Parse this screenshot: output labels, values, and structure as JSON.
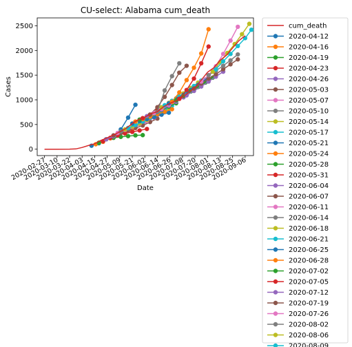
{
  "chart_data": {
    "type": "line",
    "title": "CU-select: Alabama cum_death",
    "xlabel": "Date",
    "ylabel": "Cases",
    "x_ticks": [
      "2020-02-27",
      "2020-03-10",
      "2020-03-22",
      "2020-04-03",
      "2020-04-15",
      "2020-04-27",
      "2020-05-09",
      "2020-05-21",
      "2020-06-02",
      "2020-06-14",
      "2020-06-26",
      "2020-07-08",
      "2020-07-20",
      "2020-08-01",
      "2020-08-13",
      "2020-08-25",
      "2020-09-06"
    ],
    "xlim": [
      "2020-02-20",
      "2020-09-14"
    ],
    "ylim": [
      -130,
      2660
    ],
    "y_ticks": [
      0,
      500,
      1000,
      1500,
      2000,
      2500
    ],
    "legend_position": "outside-right",
    "actual": {
      "name": "cum_death",
      "color": "#d62728",
      "points": [
        [
          "2020-02-27",
          0
        ],
        [
          "2020-03-10",
          0
        ],
        [
          "2020-03-22",
          1
        ],
        [
          "2020-03-28",
          5
        ],
        [
          "2020-04-03",
          35
        ],
        [
          "2020-04-10",
          80
        ],
        [
          "2020-04-15",
          110
        ],
        [
          "2020-04-20",
          170
        ],
        [
          "2020-04-27",
          230
        ],
        [
          "2020-05-03",
          290
        ],
        [
          "2020-05-09",
          350
        ],
        [
          "2020-05-15",
          420
        ],
        [
          "2020-05-21",
          520
        ],
        [
          "2020-05-27",
          600
        ],
        [
          "2020-06-02",
          650
        ],
        [
          "2020-06-08",
          720
        ],
        [
          "2020-06-14",
          760
        ],
        [
          "2020-06-20",
          860
        ],
        [
          "2020-06-26",
          930
        ],
        [
          "2020-07-02",
          980
        ],
        [
          "2020-07-08",
          1050
        ],
        [
          "2020-07-14",
          1150
        ],
        [
          "2020-07-20",
          1250
        ],
        [
          "2020-07-26",
          1400
        ],
        [
          "2020-08-01",
          1560
        ],
        [
          "2020-08-07",
          1650
        ],
        [
          "2020-08-13",
          1800
        ],
        [
          "2020-08-19",
          1900
        ],
        [
          "2020-08-25",
          2050
        ],
        [
          "2020-08-31",
          2200
        ],
        [
          "2020-09-06",
          2300
        ]
      ]
    },
    "series": [
      {
        "name": "2020-04-12",
        "color": "#1f77b4",
        "points": [
          [
            "2020-04-12",
            70
          ],
          [
            "2020-04-19",
            120
          ],
          [
            "2020-04-26",
            200
          ],
          [
            "2020-05-03",
            270
          ],
          [
            "2020-05-10",
            400
          ],
          [
            "2020-05-17",
            640
          ],
          [
            "2020-05-24",
            900
          ]
        ]
      },
      {
        "name": "2020-04-16",
        "color": "#ff7f0e",
        "points": [
          [
            "2020-04-16",
            100
          ],
          [
            "2020-04-23",
            150
          ],
          [
            "2020-04-30",
            220
          ],
          [
            "2020-05-07",
            300
          ],
          [
            "2020-05-14",
            360
          ],
          [
            "2020-05-21",
            390
          ]
        ]
      },
      {
        "name": "2020-04-19",
        "color": "#2ca02c",
        "points": [
          [
            "2020-04-19",
            130
          ],
          [
            "2020-04-26",
            200
          ],
          [
            "2020-05-03",
            230
          ],
          [
            "2020-05-10",
            250
          ],
          [
            "2020-05-17",
            265
          ],
          [
            "2020-05-24",
            280
          ],
          [
            "2020-05-31",
            285
          ]
        ]
      },
      {
        "name": "2020-04-23",
        "color": "#d62728",
        "points": [
          [
            "2020-04-23",
            160
          ],
          [
            "2020-04-30",
            230
          ],
          [
            "2020-05-07",
            280
          ],
          [
            "2020-05-14",
            320
          ],
          [
            "2020-05-21",
            350
          ],
          [
            "2020-05-28",
            380
          ],
          [
            "2020-06-04",
            410
          ]
        ]
      },
      {
        "name": "2020-04-26",
        "color": "#9467bd",
        "points": [
          [
            "2020-04-26",
            200
          ],
          [
            "2020-05-03",
            260
          ],
          [
            "2020-05-10",
            330
          ],
          [
            "2020-05-17",
            400
          ],
          [
            "2020-05-24",
            460
          ],
          [
            "2020-05-31",
            520
          ],
          [
            "2020-06-07",
            560
          ]
        ]
      },
      {
        "name": "2020-05-03",
        "color": "#8c564b",
        "points": [
          [
            "2020-05-03",
            280
          ],
          [
            "2020-05-10",
            330
          ],
          [
            "2020-05-17",
            380
          ],
          [
            "2020-05-24",
            430
          ],
          [
            "2020-05-31",
            480
          ],
          [
            "2020-06-07",
            550
          ],
          [
            "2020-06-14",
            620
          ]
        ]
      },
      {
        "name": "2020-05-07",
        "color": "#e377c2",
        "points": [
          [
            "2020-05-07",
            330
          ],
          [
            "2020-05-14",
            390
          ],
          [
            "2020-05-21",
            450
          ],
          [
            "2020-05-28",
            510
          ],
          [
            "2020-06-04",
            570
          ],
          [
            "2020-06-11",
            640
          ],
          [
            "2020-06-18",
            700
          ]
        ]
      },
      {
        "name": "2020-05-10",
        "color": "#7f7f7f",
        "points": [
          [
            "2020-05-10",
            360
          ],
          [
            "2020-05-17",
            420
          ],
          [
            "2020-05-24",
            490
          ],
          [
            "2020-05-31",
            560
          ],
          [
            "2020-06-07",
            630
          ],
          [
            "2020-06-14",
            700
          ],
          [
            "2020-06-21",
            770
          ]
        ]
      },
      {
        "name": "2020-05-14",
        "color": "#bcbd22",
        "points": [
          [
            "2020-05-14",
            400
          ],
          [
            "2020-05-21",
            460
          ],
          [
            "2020-05-28",
            520
          ],
          [
            "2020-06-04",
            590
          ],
          [
            "2020-06-11",
            660
          ],
          [
            "2020-06-18",
            740
          ],
          [
            "2020-06-25",
            820
          ]
        ]
      },
      {
        "name": "2020-05-17",
        "color": "#17becf",
        "points": [
          [
            "2020-05-17",
            430
          ],
          [
            "2020-05-24",
            490
          ],
          [
            "2020-05-31",
            560
          ],
          [
            "2020-06-07",
            640
          ],
          [
            "2020-06-14",
            720
          ],
          [
            "2020-06-21",
            800
          ],
          [
            "2020-06-28",
            880
          ]
        ]
      },
      {
        "name": "2020-05-21",
        "color": "#1f77b4",
        "points": [
          [
            "2020-05-21",
            520
          ],
          [
            "2020-05-28",
            570
          ],
          [
            "2020-06-04",
            610
          ],
          [
            "2020-06-11",
            650
          ],
          [
            "2020-06-18",
            700
          ],
          [
            "2020-06-25",
            740
          ]
        ]
      },
      {
        "name": "2020-05-24",
        "color": "#ff7f0e",
        "points": [
          [
            "2020-05-24",
            560
          ],
          [
            "2020-05-31",
            610
          ],
          [
            "2020-06-07",
            660
          ],
          [
            "2020-06-14",
            710
          ],
          [
            "2020-06-21",
            760
          ],
          [
            "2020-06-28",
            810
          ]
        ]
      },
      {
        "name": "2020-05-28",
        "color": "#2ca02c",
        "points": [
          [
            "2020-05-28",
            600
          ],
          [
            "2020-06-04",
            660
          ],
          [
            "2020-06-11",
            720
          ],
          [
            "2020-06-18",
            790
          ],
          [
            "2020-06-25",
            860
          ],
          [
            "2020-07-02",
            930
          ]
        ]
      },
      {
        "name": "2020-05-31",
        "color": "#d62728",
        "points": [
          [
            "2020-05-31",
            630
          ],
          [
            "2020-06-07",
            700
          ],
          [
            "2020-06-14",
            780
          ],
          [
            "2020-06-21",
            870
          ],
          [
            "2020-06-28",
            960
          ],
          [
            "2020-07-05",
            1050
          ]
        ]
      },
      {
        "name": "2020-06-04",
        "color": "#9467bd",
        "points": [
          [
            "2020-06-04",
            670
          ],
          [
            "2020-06-11",
            730
          ],
          [
            "2020-06-18",
            800
          ],
          [
            "2020-06-25",
            880
          ],
          [
            "2020-07-02",
            960
          ],
          [
            "2020-07-09",
            1050
          ]
        ]
      },
      {
        "name": "2020-06-07",
        "color": "#8c564b",
        "points": [
          [
            "2020-06-07",
            700
          ],
          [
            "2020-06-14",
            850
          ],
          [
            "2020-06-21",
            1060
          ],
          [
            "2020-06-28",
            1300
          ],
          [
            "2020-07-05",
            1550
          ],
          [
            "2020-07-12",
            1690
          ]
        ]
      },
      {
        "name": "2020-06-11",
        "color": "#e377c2",
        "points": [
          [
            "2020-06-11",
            730
          ],
          [
            "2020-06-18",
            820
          ],
          [
            "2020-06-25",
            900
          ],
          [
            "2020-07-02",
            990
          ],
          [
            "2020-07-09",
            1080
          ],
          [
            "2020-07-16",
            1180
          ]
        ]
      },
      {
        "name": "2020-06-14",
        "color": "#7f7f7f",
        "points": [
          [
            "2020-06-14",
            750
          ],
          [
            "2020-06-21",
            1190
          ],
          [
            "2020-06-28",
            1480
          ],
          [
            "2020-07-05",
            1740
          ]
        ]
      },
      {
        "name": "2020-06-18",
        "color": "#bcbd22",
        "points": [
          [
            "2020-06-18",
            850
          ],
          [
            "2020-06-25",
            940
          ],
          [
            "2020-07-02",
            1030
          ],
          [
            "2020-07-09",
            1130
          ],
          [
            "2020-07-16",
            1240
          ],
          [
            "2020-07-23",
            1350
          ]
        ]
      },
      {
        "name": "2020-06-21",
        "color": "#17becf",
        "points": [
          [
            "2020-06-21",
            890
          ],
          [
            "2020-06-28",
            980
          ],
          [
            "2020-07-05",
            1070
          ],
          [
            "2020-07-12",
            1170
          ],
          [
            "2020-07-19",
            1280
          ],
          [
            "2020-07-26",
            1390
          ]
        ]
      },
      {
        "name": "2020-06-25",
        "color": "#1f77b4",
        "points": [
          [
            "2020-06-25",
            930
          ],
          [
            "2020-07-02",
            1020
          ],
          [
            "2020-07-09",
            1100
          ],
          [
            "2020-07-16",
            1200
          ],
          [
            "2020-07-23",
            1300
          ],
          [
            "2020-07-30",
            1410
          ]
        ]
      },
      {
        "name": "2020-06-28",
        "color": "#ff7f0e",
        "points": [
          [
            "2020-06-28",
            960
          ],
          [
            "2020-07-05",
            1150
          ],
          [
            "2020-07-12",
            1400
          ],
          [
            "2020-07-19",
            1650
          ],
          [
            "2020-07-26",
            1940
          ],
          [
            "2020-08-02",
            2430
          ]
        ]
      },
      {
        "name": "2020-07-02",
        "color": "#2ca02c",
        "points": [
          [
            "2020-07-02",
            990
          ],
          [
            "2020-07-09",
            1080
          ],
          [
            "2020-07-16",
            1170
          ],
          [
            "2020-07-23",
            1260
          ],
          [
            "2020-07-30",
            1350
          ],
          [
            "2020-08-06",
            1450
          ]
        ]
      },
      {
        "name": "2020-07-05",
        "color": "#d62728",
        "points": [
          [
            "2020-07-05",
            1020
          ],
          [
            "2020-07-12",
            1200
          ],
          [
            "2020-07-19",
            1430
          ],
          [
            "2020-07-26",
            1740
          ],
          [
            "2020-08-02",
            2080
          ]
        ]
      },
      {
        "name": "2020-07-12",
        "color": "#9467bd",
        "points": [
          [
            "2020-07-12",
            1090
          ],
          [
            "2020-07-19",
            1180
          ],
          [
            "2020-07-26",
            1270
          ],
          [
            "2020-08-02",
            1370
          ],
          [
            "2020-08-09",
            1470
          ],
          [
            "2020-08-16",
            1570
          ]
        ]
      },
      {
        "name": "2020-07-19",
        "color": "#8c564b",
        "points": [
          [
            "2020-07-19",
            1230
          ],
          [
            "2020-07-26",
            1330
          ],
          [
            "2020-08-02",
            1430
          ],
          [
            "2020-08-09",
            1520
          ],
          [
            "2020-08-16",
            1620
          ],
          [
            "2020-08-23",
            1720
          ],
          [
            "2020-08-30",
            1820
          ]
        ]
      },
      {
        "name": "2020-07-26",
        "color": "#e377c2",
        "points": [
          [
            "2020-07-26",
            1370
          ],
          [
            "2020-08-02",
            1500
          ],
          [
            "2020-08-09",
            1680
          ],
          [
            "2020-08-16",
            1930
          ],
          [
            "2020-08-23",
            2200
          ],
          [
            "2020-08-30",
            2480
          ]
        ]
      },
      {
        "name": "2020-08-02",
        "color": "#7f7f7f",
        "points": [
          [
            "2020-08-02",
            1500
          ],
          [
            "2020-08-09",
            1590
          ],
          [
            "2020-08-16",
            1690
          ],
          [
            "2020-08-23",
            1800
          ],
          [
            "2020-08-30",
            1920
          ]
        ]
      },
      {
        "name": "2020-08-06",
        "color": "#bcbd22",
        "points": [
          [
            "2020-08-06",
            1570
          ],
          [
            "2020-08-13",
            1760
          ],
          [
            "2020-08-20",
            1950
          ],
          [
            "2020-08-27",
            2130
          ],
          [
            "2020-09-03",
            2330
          ],
          [
            "2020-09-10",
            2540
          ]
        ]
      },
      {
        "name": "2020-08-09",
        "color": "#17becf",
        "points": [
          [
            "2020-08-09",
            1620
          ],
          [
            "2020-08-16",
            1780
          ],
          [
            "2020-08-23",
            1930
          ],
          [
            "2020-08-30",
            2090
          ],
          [
            "2020-09-06",
            2250
          ],
          [
            "2020-09-12",
            2420
          ]
        ]
      }
    ]
  }
}
